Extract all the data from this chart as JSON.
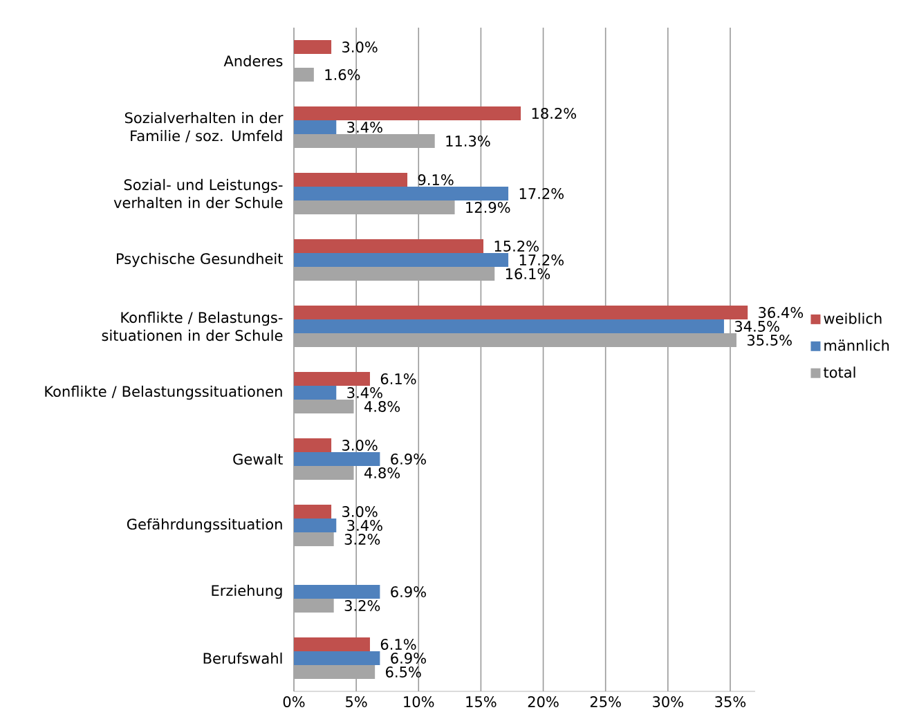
{
  "chart_data": {
    "type": "bar",
    "orientation": "horizontal",
    "categories": [
      "Anderes",
      "Sozialverhalten in der Familie / soz. Umfeld",
      "Sozial- und Leistungs-verhalten in der Schule",
      "Psychische Gesundheit",
      "Konflikte / Belastungs-situationen in der Schule",
      "Konflikte / Belastungssituationen",
      "Gewalt",
      "Gefährdungssituation",
      "Erziehung",
      "Berufswahl"
    ],
    "series": [
      {
        "name": "weiblich",
        "color": "#c0504d",
        "values": [
          3.0,
          18.2,
          9.1,
          15.2,
          36.4,
          6.1,
          3.0,
          3.0,
          null,
          6.1
        ],
        "value_labels": [
          "3.0%",
          "18.2%",
          "9.1%",
          "15.2%",
          "36.4%",
          "6.1%",
          "3.0%",
          "3.0%",
          null,
          "6.1%"
        ]
      },
      {
        "name": "männlich",
        "color": "#4f81bd",
        "values": [
          null,
          3.4,
          17.2,
          17.2,
          34.5,
          3.4,
          6.9,
          3.4,
          6.9,
          6.9
        ],
        "value_labels": [
          null,
          "3.4%",
          "17.2%",
          "17.2%",
          "34.5%",
          "3.4%",
          "6.9%",
          "3.4%",
          "6.9%",
          "6.9%"
        ]
      },
      {
        "name": "total",
        "color": "#a5a5a5",
        "values": [
          1.6,
          11.3,
          12.9,
          16.1,
          35.5,
          4.8,
          4.8,
          3.2,
          3.2,
          6.5
        ],
        "value_labels": [
          "1.6%",
          "11.3%",
          "12.9%",
          "16.1%",
          "35.5%",
          "4.8%",
          "4.8%",
          "3.2%",
          "3.2%",
          "6.5%"
        ]
      }
    ],
    "xlim": [
      0,
      37
    ],
    "xticks": [
      {
        "value": 0,
        "label": "0%"
      },
      {
        "value": 5,
        "label": "5%"
      },
      {
        "value": 10,
        "label": "10%"
      },
      {
        "value": 15,
        "label": "15%"
      },
      {
        "value": 20,
        "label": "20%"
      },
      {
        "value": 25,
        "label": "25%"
      },
      {
        "value": 30,
        "label": "30%"
      },
      {
        "value": 35,
        "label": "35%"
      }
    ],
    "grid": "x",
    "legend": "right"
  }
}
